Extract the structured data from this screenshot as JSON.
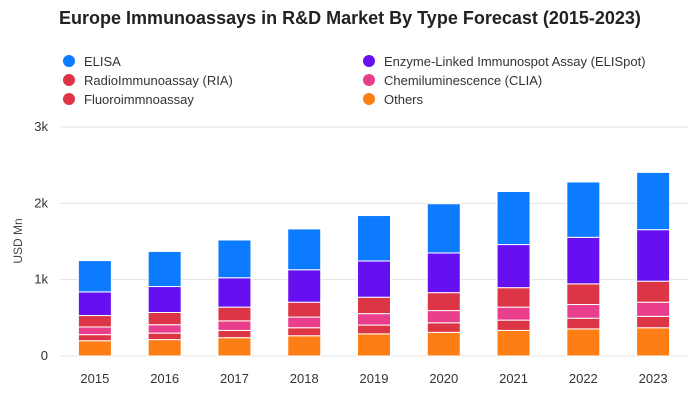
{
  "chart_data": {
    "type": "bar",
    "stacked": true,
    "title": "Europe Immunoassays in R&D Market By Type Forecast (2015-2023)",
    "ylabel": "USD Mn",
    "xlabel": "",
    "ylim": [
      0,
      3000
    ],
    "yticks": [
      0,
      1000,
      2000,
      3000
    ],
    "ytick_labels": [
      "0",
      "1k",
      "2k",
      "3k"
    ],
    "grid": true,
    "legend_position": "top",
    "categories": [
      "2015",
      "2016",
      "2017",
      "2018",
      "2019",
      "2020",
      "2021",
      "2022",
      "2023"
    ],
    "series": [
      {
        "name": "Others",
        "color": "#fd7e14",
        "values": [
          200,
          215,
          240,
          265,
          290,
          310,
          335,
          355,
          370
        ]
      },
      {
        "name": "Fluoroimmnoassay",
        "color": "#dc3545",
        "values": [
          80,
          85,
          95,
          105,
          115,
          125,
          135,
          140,
          150
        ]
      },
      {
        "name": "Chemiluminescence (CLIA)",
        "color": "#e83e8c",
        "values": [
          100,
          110,
          125,
          140,
          150,
          160,
          170,
          180,
          185
        ]
      },
      {
        "name": "RadioImmunoassay (RIA)",
        "color": "#dc3545",
        "values": [
          150,
          160,
          180,
          195,
          215,
          235,
          255,
          270,
          275
        ]
      },
      {
        "name": "Enzyme-Linked Immunospot Assay (ELISpot)",
        "color": "#6610f2",
        "values": [
          310,
          340,
          385,
          425,
          475,
          520,
          565,
          610,
          675
        ]
      },
      {
        "name": "ELISA",
        "color": "#0d7bff",
        "values": [
          410,
          460,
          495,
          535,
          595,
          645,
          695,
          725,
          750
        ]
      }
    ]
  },
  "legend": {
    "items": [
      {
        "label": "ELISA",
        "color": "#0d7bff"
      },
      {
        "label": "RadioImmunoassay (RIA)",
        "color": "#dc3545"
      },
      {
        "label": "Fluoroimmnoassay",
        "color": "#dc3545"
      },
      {
        "label": "Enzyme-Linked Immunospot Assay (ELISpot)",
        "color": "#6610f2"
      },
      {
        "label": "Chemiluminescence (CLIA)",
        "color": "#e83e8c"
      },
      {
        "label": "Others",
        "color": "#fd7e14"
      }
    ]
  }
}
